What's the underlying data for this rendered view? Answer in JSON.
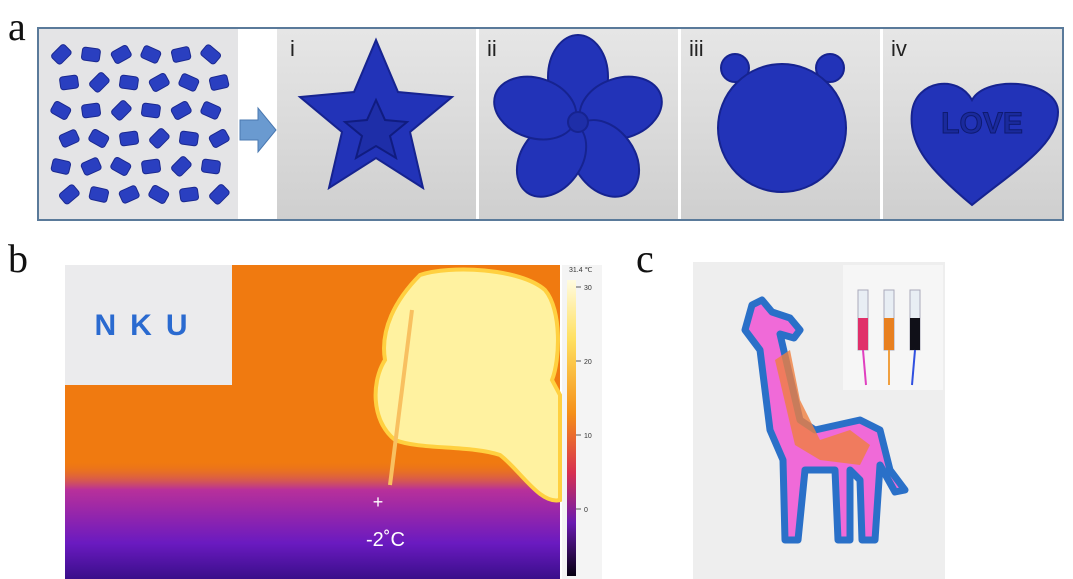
{
  "panel_labels": [
    "a",
    "b",
    "c"
  ],
  "mold_labels": [
    "i",
    "ii",
    "iii",
    "iv"
  ],
  "heart_text": "LOVE",
  "inset_text": "NKU",
  "thermal": {
    "point_marker": "+",
    "point_temp": "-2˚C",
    "scale_max": "31.4 ℃",
    "scale_ticks": [
      "30",
      "20",
      "10",
      "0"
    ]
  }
}
